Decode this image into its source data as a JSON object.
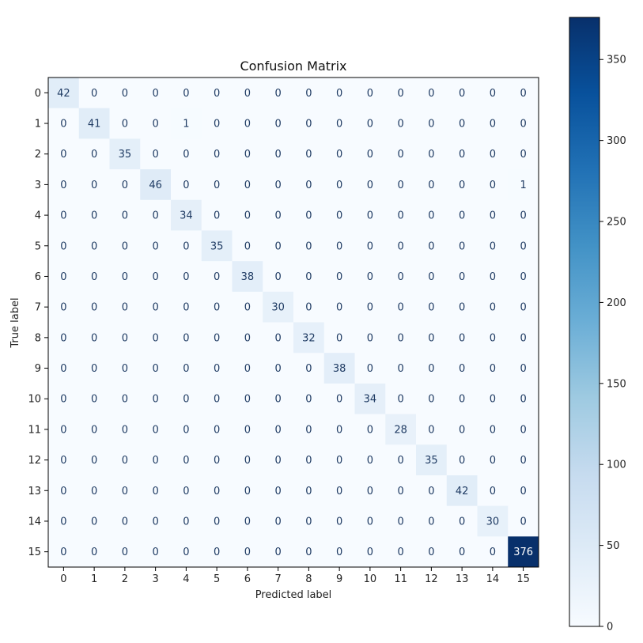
{
  "chart_data": {
    "type": "heatmap",
    "title": "Confusion Matrix",
    "xlabel": "Predicted label",
    "ylabel": "True label",
    "x_categories": [
      "0",
      "1",
      "2",
      "3",
      "4",
      "5",
      "6",
      "7",
      "8",
      "9",
      "10",
      "11",
      "12",
      "13",
      "14",
      "15"
    ],
    "y_categories": [
      "0",
      "1",
      "2",
      "3",
      "4",
      "5",
      "6",
      "7",
      "8",
      "9",
      "10",
      "11",
      "12",
      "13",
      "14",
      "15"
    ],
    "matrix": [
      [
        42,
        0,
        0,
        0,
        0,
        0,
        0,
        0,
        0,
        0,
        0,
        0,
        0,
        0,
        0,
        0
      ],
      [
        0,
        41,
        0,
        0,
        1,
        0,
        0,
        0,
        0,
        0,
        0,
        0,
        0,
        0,
        0,
        0
      ],
      [
        0,
        0,
        35,
        0,
        0,
        0,
        0,
        0,
        0,
        0,
        0,
        0,
        0,
        0,
        0,
        0
      ],
      [
        0,
        0,
        0,
        46,
        0,
        0,
        0,
        0,
        0,
        0,
        0,
        0,
        0,
        0,
        0,
        1
      ],
      [
        0,
        0,
        0,
        0,
        34,
        0,
        0,
        0,
        0,
        0,
        0,
        0,
        0,
        0,
        0,
        0
      ],
      [
        0,
        0,
        0,
        0,
        0,
        35,
        0,
        0,
        0,
        0,
        0,
        0,
        0,
        0,
        0,
        0
      ],
      [
        0,
        0,
        0,
        0,
        0,
        0,
        38,
        0,
        0,
        0,
        0,
        0,
        0,
        0,
        0,
        0
      ],
      [
        0,
        0,
        0,
        0,
        0,
        0,
        0,
        30,
        0,
        0,
        0,
        0,
        0,
        0,
        0,
        0
      ],
      [
        0,
        0,
        0,
        0,
        0,
        0,
        0,
        0,
        32,
        0,
        0,
        0,
        0,
        0,
        0,
        0
      ],
      [
        0,
        0,
        0,
        0,
        0,
        0,
        0,
        0,
        0,
        38,
        0,
        0,
        0,
        0,
        0,
        0
      ],
      [
        0,
        0,
        0,
        0,
        0,
        0,
        0,
        0,
        0,
        0,
        34,
        0,
        0,
        0,
        0,
        0
      ],
      [
        0,
        0,
        0,
        0,
        0,
        0,
        0,
        0,
        0,
        0,
        0,
        28,
        0,
        0,
        0,
        0
      ],
      [
        0,
        0,
        0,
        0,
        0,
        0,
        0,
        0,
        0,
        0,
        0,
        0,
        35,
        0,
        0,
        0
      ],
      [
        0,
        0,
        0,
        0,
        0,
        0,
        0,
        0,
        0,
        0,
        0,
        0,
        0,
        42,
        0,
        0
      ],
      [
        0,
        0,
        0,
        0,
        0,
        0,
        0,
        0,
        0,
        0,
        0,
        0,
        0,
        0,
        30,
        0
      ],
      [
        0,
        0,
        0,
        0,
        0,
        0,
        0,
        0,
        0,
        0,
        0,
        0,
        0,
        0,
        0,
        376
      ]
    ],
    "colormap": "Blues",
    "colorbar": {
      "range": [
        0,
        376
      ],
      "ticks": [
        0,
        50,
        100,
        150,
        200,
        250,
        300,
        350
      ]
    }
  }
}
